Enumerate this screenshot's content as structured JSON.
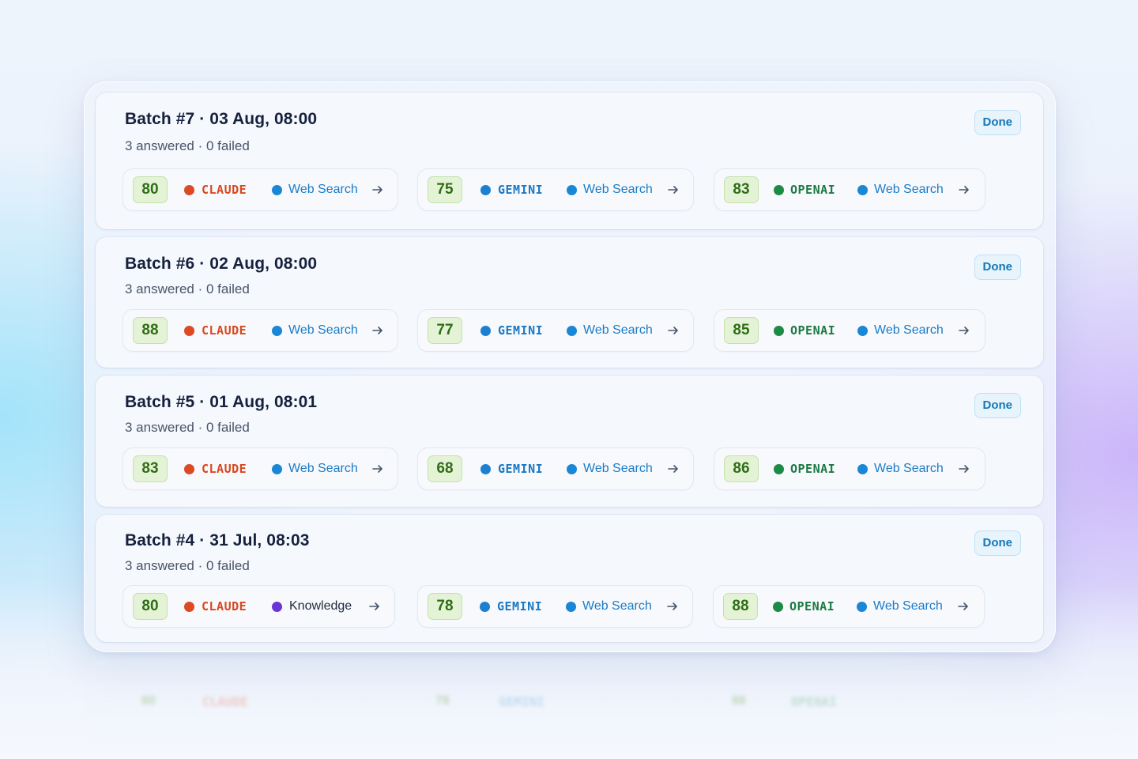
{
  "accent": "#1578b8",
  "batches": [
    {
      "title": "Batch #7 · 03 Aug, 08:00",
      "subtitle": "3 answered · 0 failed",
      "status": "Done",
      "results": [
        {
          "score": "80",
          "provider": "CLAUDE",
          "tool": "Web Search"
        },
        {
          "score": "75",
          "provider": "GEMINI",
          "tool": "Web Search"
        },
        {
          "score": "83",
          "provider": "OPENAI",
          "tool": "Web Search"
        }
      ]
    },
    {
      "title": "Batch #6 · 02 Aug, 08:00",
      "subtitle": "3 answered · 0 failed",
      "status": "Done",
      "results": [
        {
          "score": "88",
          "provider": "CLAUDE",
          "tool": "Web Search"
        },
        {
          "score": "77",
          "provider": "GEMINI",
          "tool": "Web Search"
        },
        {
          "score": "85",
          "provider": "OPENAI",
          "tool": "Web Search"
        }
      ]
    },
    {
      "title": "Batch #5 · 01 Aug, 08:01",
      "subtitle": "3 answered · 0 failed",
      "status": "Done",
      "results": [
        {
          "score": "83",
          "provider": "CLAUDE",
          "tool": "Web Search"
        },
        {
          "score": "68",
          "provider": "GEMINI",
          "tool": "Web Search"
        },
        {
          "score": "86",
          "provider": "OPENAI",
          "tool": "Web Search"
        }
      ]
    },
    {
      "title": "Batch #4 · 31 Jul, 08:03",
      "subtitle": "3 answered · 0 failed",
      "status": "Done",
      "results": [
        {
          "score": "80",
          "provider": "CLAUDE",
          "tool": "Knowledge"
        },
        {
          "score": "78",
          "provider": "GEMINI",
          "tool": "Web Search"
        },
        {
          "score": "88",
          "provider": "OPENAI",
          "tool": "Web Search"
        }
      ]
    }
  ],
  "provider_colors": {
    "CLAUDE": "#dc4a24",
    "GEMINI": "#1d7fd0",
    "OPENAI": "#1e8a47"
  },
  "provider_text_colors": {
    "CLAUDE": "#d9481f",
    "GEMINI": "#1b78c2",
    "OPENAI": "#1c7a42"
  },
  "tool_colors": {
    "Web Search": "#1a86d6",
    "Knowledge": "#6a35d6"
  },
  "tool_text_colors": {
    "Web Search": "#1a7cc6",
    "Knowledge": "#1e293b"
  },
  "icons": {
    "result_link": "arrow-right-icon",
    "provider_marker": "dot-icon",
    "tool_marker": "dot-icon"
  }
}
